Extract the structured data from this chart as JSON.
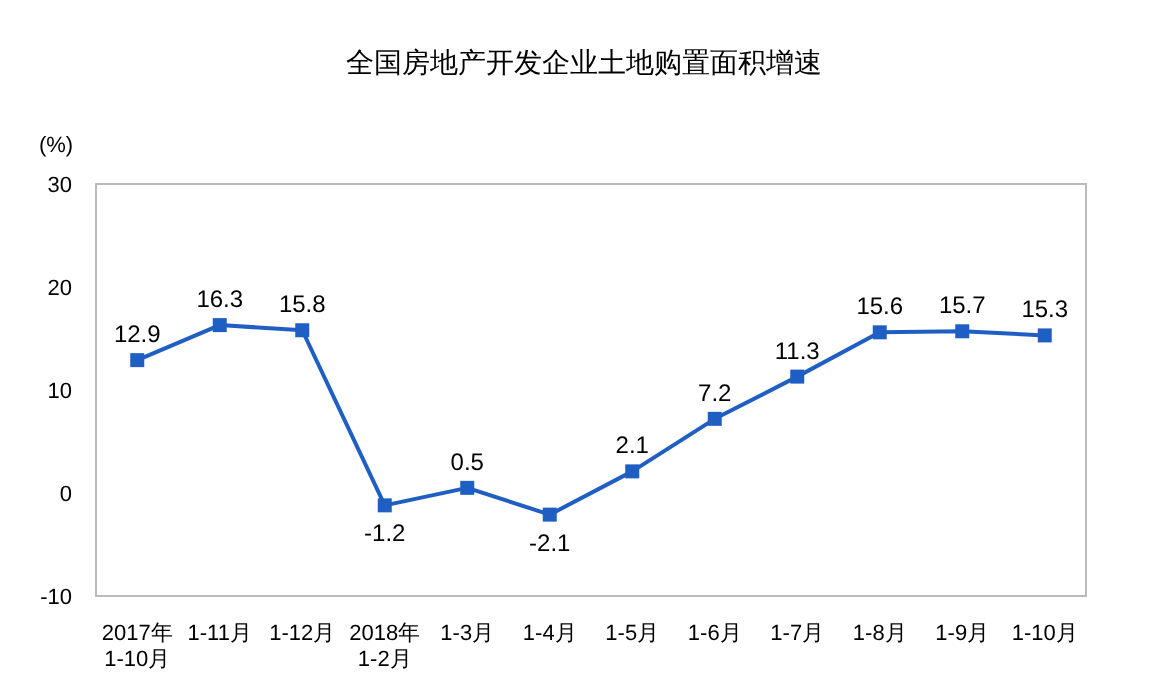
{
  "chart_data": {
    "type": "line",
    "title": "全国房地产开发企业土地购置面积增速",
    "ylabel": "(%)",
    "categories": [
      "2017年\n1-10月",
      "1-11月",
      "1-12月",
      "2018年\n1-2月",
      "1-3月",
      "1-4月",
      "1-5月",
      "1-6月",
      "1-7月",
      "1-8月",
      "1-9月",
      "1-10月"
    ],
    "series": [
      {
        "color": "#1f5fc4",
        "values": [
          12.9,
          16.3,
          15.8,
          -1.2,
          0.5,
          -2.1,
          2.1,
          7.2,
          11.3,
          15.6,
          15.7,
          15.3
        ]
      }
    ],
    "ylim": [
      -10,
      30
    ],
    "yticks": [
      -10,
      0,
      10,
      20,
      30
    ],
    "marker": "square",
    "data_labels": true,
    "grid": false
  }
}
